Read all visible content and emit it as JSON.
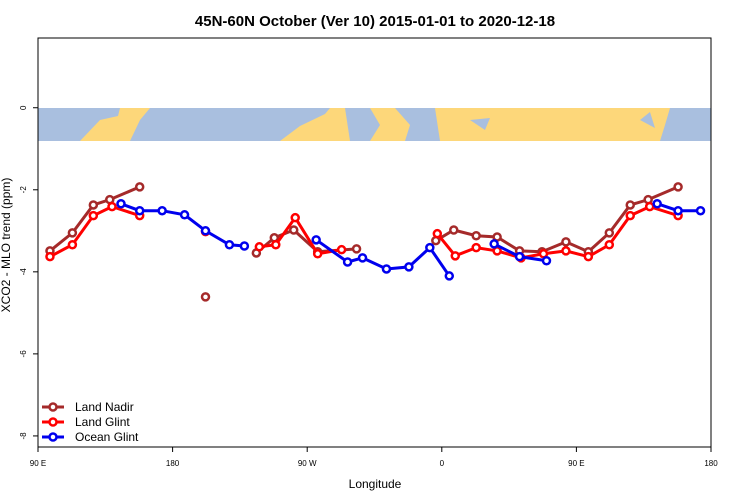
{
  "chart_data": {
    "type": "line",
    "title": "45N-60N October (Ver 10)   2015-01-01 to 2020-12-18",
    "x_label": "Longitude",
    "y_label": "XCO2 - MLO trend (ppm)",
    "xlim": [
      90,
      540
    ],
    "ylim": [
      -8.27,
      1.7
    ],
    "xticks": [
      {
        "value": 90,
        "label": "90 E"
      },
      180,
      {
        "value": 270,
        "label": "90 W"
      },
      {
        "value": 360,
        "label": "0"
      },
      {
        "value": 450,
        "label": "90 E"
      },
      {
        "value": 540,
        "label": "180"
      }
    ],
    "yticks": [
      0,
      -2,
      -4,
      -6,
      -8
    ],
    "legend": "bottom-left",
    "series": [
      {
        "name": "Land Nadir",
        "color": "#a52a2a",
        "x": [
          98,
          113,
          127,
          138,
          158,
          null,
          202,
          null,
          236,
          248,
          261,
          277,
          303,
          null,
          356,
          368,
          383,
          397,
          412,
          427,
          443,
          458,
          472,
          486,
          498,
          518
        ],
        "values": [
          -3.49,
          -3.05,
          -2.37,
          -2.24,
          -1.93,
          null,
          -4.61,
          null,
          -3.54,
          -3.17,
          -2.98,
          -3.51,
          -3.44,
          null,
          -3.24,
          -2.98,
          -3.12,
          -3.15,
          -3.49,
          -3.51,
          -3.27,
          -3.51,
          -3.05,
          -2.37,
          -2.24,
          -1.93
        ]
      },
      {
        "name": "Land Glint",
        "color": "#ff0000",
        "x": [
          98,
          113,
          127,
          139.5,
          158,
          null,
          202,
          null,
          238,
          249,
          262,
          277,
          293,
          null,
          357,
          369,
          383,
          397,
          413,
          428,
          443,
          458,
          472,
          486,
          499,
          518
        ],
        "values": [
          -3.63,
          -3.34,
          -2.63,
          -2.41,
          -2.63,
          null,
          -3.02,
          null,
          -3.39,
          -3.34,
          -2.68,
          -3.56,
          -3.46,
          null,
          -3.07,
          -3.61,
          -3.41,
          -3.49,
          -3.66,
          -3.56,
          -3.49,
          -3.63,
          -3.34,
          -2.63,
          -2.41,
          -2.63
        ]
      },
      {
        "name": "Ocean Glint",
        "color": "#0000ee",
        "x": [
          145.5,
          158,
          173,
          188,
          202,
          218,
          228,
          null,
          276,
          297,
          307,
          323,
          338,
          352,
          365,
          null,
          395,
          412,
          430,
          null,
          504,
          518,
          533
        ],
        "values": [
          -2.34,
          -2.51,
          -2.51,
          -2.61,
          -3.0,
          -3.34,
          -3.37,
          null,
          -3.22,
          -3.76,
          -3.66,
          -3.93,
          -3.88,
          -3.41,
          -4.1,
          null,
          -3.32,
          -3.63,
          -3.73,
          null,
          -2.34,
          -2.51,
          -2.51
        ]
      }
    ]
  }
}
